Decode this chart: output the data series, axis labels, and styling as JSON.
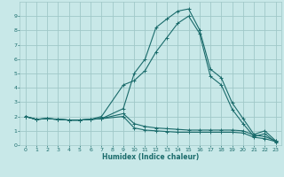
{
  "xlabel": "Humidex (Indice chaleur)",
  "bg_color": "#c8e8e8",
  "line_color": "#1a6b6b",
  "grid_color": "#a0c8c8",
  "xlim": [
    -0.5,
    23.5
  ],
  "ylim": [
    0,
    10
  ],
  "xticks": [
    0,
    1,
    2,
    3,
    4,
    5,
    6,
    7,
    8,
    9,
    10,
    11,
    12,
    13,
    14,
    15,
    16,
    17,
    18,
    19,
    20,
    21,
    22,
    23
  ],
  "yticks": [
    0,
    1,
    2,
    3,
    4,
    5,
    6,
    7,
    8,
    9
  ],
  "lines": [
    {
      "x": [
        0,
        1,
        2,
        3,
        4,
        5,
        6,
        7,
        9,
        10,
        11,
        12,
        13,
        14,
        15,
        16,
        17,
        18,
        19,
        20,
        21,
        22,
        23
      ],
      "y": [
        2.0,
        1.8,
        1.85,
        1.8,
        1.75,
        1.75,
        1.8,
        1.85,
        2.55,
        5.0,
        6.0,
        8.2,
        8.8,
        9.35,
        9.5,
        8.05,
        5.3,
        4.7,
        2.95,
        1.85,
        0.75,
        1.0,
        0.3
      ]
    },
    {
      "x": [
        0,
        1,
        2,
        3,
        4,
        5,
        6,
        7,
        9,
        10,
        11,
        12,
        13,
        14,
        15,
        16,
        17,
        18,
        19,
        20,
        21,
        22,
        23
      ],
      "y": [
        2.0,
        1.8,
        1.85,
        1.8,
        1.75,
        1.75,
        1.8,
        2.0,
        4.2,
        4.5,
        5.2,
        6.5,
        7.5,
        8.5,
        9.0,
        7.8,
        4.8,
        4.2,
        2.5,
        1.5,
        0.6,
        0.8,
        0.2
      ]
    },
    {
      "x": [
        0,
        1,
        2,
        3,
        4,
        5,
        6,
        7,
        9,
        10,
        11,
        12,
        13,
        14,
        15,
        16,
        17,
        18,
        19,
        20,
        21,
        22,
        23
      ],
      "y": [
        2.0,
        1.8,
        1.85,
        1.8,
        1.75,
        1.75,
        1.8,
        1.85,
        2.2,
        1.5,
        1.3,
        1.2,
        1.15,
        1.1,
        1.05,
        1.05,
        1.05,
        1.05,
        1.05,
        1.0,
        0.7,
        0.6,
        0.3
      ]
    },
    {
      "x": [
        0,
        1,
        2,
        3,
        4,
        5,
        6,
        7,
        9,
        10,
        11,
        12,
        13,
        14,
        15,
        16,
        17,
        18,
        19,
        20,
        21,
        22,
        23
      ],
      "y": [
        2.0,
        1.8,
        1.85,
        1.8,
        1.75,
        1.75,
        1.8,
        1.85,
        2.0,
        1.2,
        1.05,
        1.0,
        0.95,
        0.9,
        0.9,
        0.9,
        0.9,
        0.9,
        0.9,
        0.85,
        0.55,
        0.45,
        0.25
      ]
    }
  ]
}
